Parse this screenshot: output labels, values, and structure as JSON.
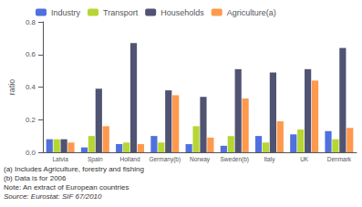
{
  "chart_data": {
    "type": "bar",
    "categories": [
      "Latvia",
      "Spain",
      "Holland",
      "Germany(b)",
      "Norway",
      "Sweden(b)",
      "Italy",
      "UK",
      "Denmark"
    ],
    "series": [
      {
        "name": "Industry",
        "values": [
          0.08,
          0.03,
          0.05,
          0.1,
          0.05,
          0.04,
          0.1,
          0.11,
          0.13
        ]
      },
      {
        "name": "Transport",
        "values": [
          0.08,
          0.1,
          0.06,
          0.06,
          0.16,
          0.1,
          0.06,
          0.14,
          0.08
        ]
      },
      {
        "name": "Households",
        "values": [
          0.08,
          0.39,
          0.67,
          0.38,
          0.34,
          0.51,
          0.49,
          0.51,
          0.64
        ]
      },
      {
        "name": "Agriculture(a)",
        "values": [
          0.06,
          0.16,
          0.05,
          0.35,
          0.09,
          0.33,
          0.19,
          0.44,
          0.15
        ]
      }
    ],
    "ylabel": "ratio",
    "ylim": [
      0,
      0.8
    ],
    "yticks": [
      {
        "value": 0,
        "label": "0.0"
      },
      0.2,
      0.4,
      0.6,
      0.8
    ],
    "grid": false,
    "legend": "upper left",
    "annotations": [
      "(a) Includes Agriculture, forestry and fishing",
      "(b) Data is for 2006",
      "Note: An extract of European countries",
      "Source: Eurostat: SIF 67/2010"
    ]
  }
}
